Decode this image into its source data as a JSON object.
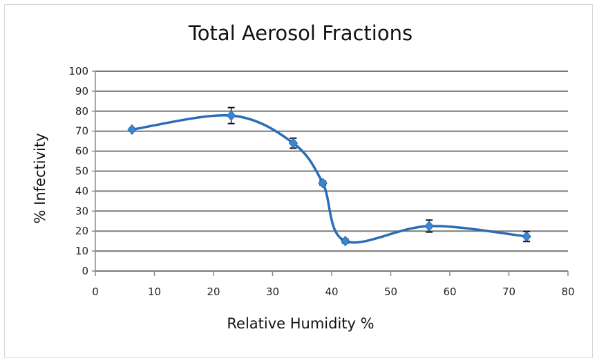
{
  "chart_data": {
    "type": "line",
    "title": "Total Aerosol Fractions",
    "xlabel": "Relative Humidity %",
    "ylabel": "% Infectivity",
    "xlim": [
      0,
      80
    ],
    "ylim": [
      0,
      100
    ],
    "xticks": [
      0,
      10,
      20,
      30,
      40,
      50,
      60,
      70,
      80
    ],
    "yticks": [
      0,
      10,
      20,
      30,
      40,
      50,
      60,
      70,
      80,
      90,
      100
    ],
    "grid": "horizontal",
    "smooth": true,
    "series": [
      {
        "color": "#2a6db5",
        "x": [
          6.2,
          23,
          33.5,
          38.5,
          42.3,
          56.5,
          73
        ],
        "y": [
          70.8,
          77.8,
          64,
          44,
          15,
          22.5,
          17.3
        ],
        "error": [
          0.5,
          4,
          2.5,
          1,
          1,
          3,
          2.5
        ]
      }
    ]
  }
}
